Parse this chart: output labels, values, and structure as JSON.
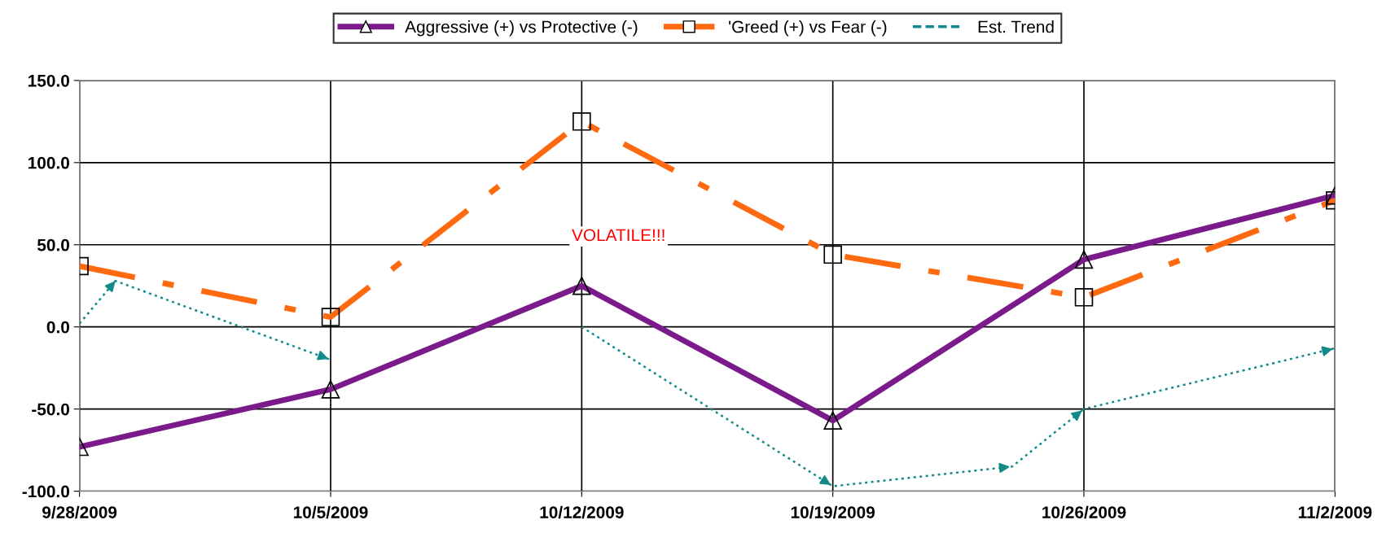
{
  "chart_data": {
    "type": "line",
    "x": [
      "2009-09-28",
      "2009-10-05",
      "2009-10-12",
      "2009-10-19",
      "2009-10-26",
      "2009-11-02"
    ],
    "series": [
      {
        "name": "Aggressive (+) vs Protective (-)",
        "color": "#7b1a8a",
        "marker": "triangle",
        "line_style": "solid",
        "values": [
          -73,
          -38,
          25,
          -57,
          41,
          80
        ]
      },
      {
        "name": "'Greed (+) vs Fear (-)",
        "color": "#ff6a10",
        "marker": "square",
        "line_style": "dashed",
        "values": [
          37,
          6,
          125,
          44,
          18,
          77
        ]
      },
      {
        "name": "Est. Trend",
        "color": "#138a8a",
        "marker": "none",
        "line_style": "dotted",
        "x": [
          "2009-09-28",
          "2009-09-29",
          "2009-10-05",
          "2009-10-08",
          "2009-10-12",
          "2009-10-19",
          "2009-10-24",
          "2009-10-26",
          "2009-11-02"
        ],
        "values": [
          2,
          28,
          -20,
          null,
          0,
          -97,
          -85,
          -50,
          -13
        ]
      }
    ],
    "xlim": [
      "2009-09-28",
      "2009-11-02"
    ],
    "xticks": [
      {
        "value": "2009-09-28",
        "label": "9/28/2009"
      },
      {
        "value": "2009-10-05",
        "label": "10/5/2009"
      },
      {
        "value": "2009-10-12",
        "label": "10/12/2009"
      },
      {
        "value": "2009-10-19",
        "label": "10/19/2009"
      },
      {
        "value": "2009-10-26",
        "label": "10/26/2009"
      },
      {
        "value": "2009-11-02",
        "label": "11/2/2009"
      }
    ],
    "ylim": [
      -100,
      150
    ],
    "yticks": [
      {
        "value": -100,
        "label": "-100.0"
      },
      {
        "value": -50,
        "label": "-50.0"
      },
      {
        "value": 0,
        "label": "0.0"
      },
      {
        "value": 50,
        "label": "50.0"
      },
      {
        "value": 100,
        "label": "100.0"
      },
      {
        "value": 150,
        "label": "150.0"
      }
    ],
    "annotations": [
      "VOLATILE!!!"
    ],
    "grid": true,
    "legend": "top"
  }
}
